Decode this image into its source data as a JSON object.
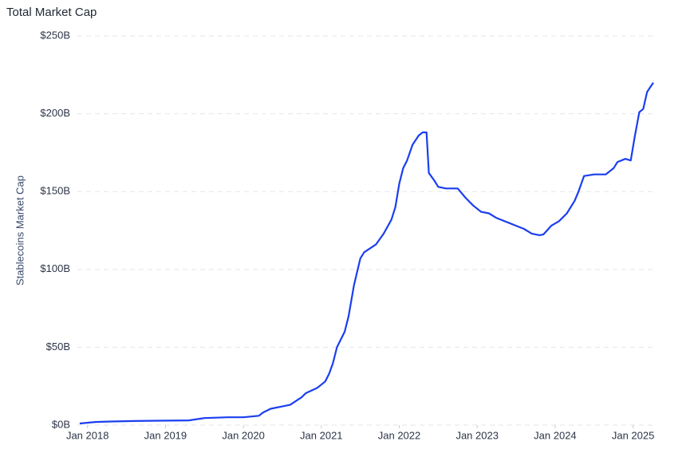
{
  "chart_data": {
    "type": "line",
    "title": "Total Market Cap",
    "y_label": "Stablecoins Market Cap",
    "x": [
      2017.9,
      2018.1,
      2018.3,
      2018.6,
      2018.9,
      2019.3,
      2019.5,
      2019.8,
      2020.0,
      2020.2,
      2020.25,
      2020.35,
      2020.5,
      2020.6,
      2020.75,
      2020.8,
      2020.95,
      2021.05,
      2021.1,
      2021.15,
      2021.2,
      2021.3,
      2021.35,
      2021.42,
      2021.5,
      2021.55,
      2021.7,
      2021.8,
      2021.9,
      2021.95,
      2022.0,
      2022.05,
      2022.1,
      2022.17,
      2022.25,
      2022.3,
      2022.35,
      2022.38,
      2022.45,
      2022.5,
      2022.6,
      2022.75,
      2022.85,
      2022.95,
      2023.05,
      2023.15,
      2023.25,
      2023.4,
      2023.5,
      2023.6,
      2023.7,
      2023.8,
      2023.85,
      2023.95,
      2024.05,
      2024.15,
      2024.25,
      2024.3,
      2024.37,
      2024.5,
      2024.65,
      2024.75,
      2024.8,
      2024.9,
      2024.97,
      2025.02,
      2025.08,
      2025.13,
      2025.18,
      2025.22,
      2025.26
    ],
    "series": [
      {
        "name": "Stablecoins Market Cap",
        "color": "#1a3ef0",
        "values": [
          1,
          2,
          2.3,
          2.6,
          2.8,
          3,
          4.5,
          5,
          5,
          6,
          8,
          10.5,
          12,
          13,
          18,
          20.5,
          24,
          28,
          33,
          40,
          50,
          60,
          70,
          90,
          107,
          111,
          116,
          123,
          132,
          140,
          155,
          165,
          170,
          180,
          186,
          188,
          188,
          162,
          157,
          153,
          152,
          152,
          146,
          141,
          137,
          136,
          133,
          130,
          128,
          126,
          123,
          122,
          122.5,
          128,
          131,
          136,
          144,
          150,
          160,
          161,
          161,
          165,
          169,
          171,
          170,
          185,
          201,
          203,
          214,
          217,
          220
        ]
      }
    ],
    "xlim": [
      2017.87,
      2025.27
    ],
    "xticks": [
      {
        "value": 2018,
        "label": "Jan 2018"
      },
      {
        "value": 2019,
        "label": "Jan 2019"
      },
      {
        "value": 2020,
        "label": "Jan 2020"
      },
      {
        "value": 2021,
        "label": "Jan 2021"
      },
      {
        "value": 2022,
        "label": "Jan 2022"
      },
      {
        "value": 2023,
        "label": "Jan 2023"
      },
      {
        "value": 2024,
        "label": "Jan 2024"
      },
      {
        "value": 2025,
        "label": "Jan 2025"
      }
    ],
    "ylim": [
      0,
      250
    ],
    "yticks": [
      {
        "value": 0,
        "label": "$0B"
      },
      {
        "value": 50,
        "label": "$50B"
      },
      {
        "value": 100,
        "label": "$100B"
      },
      {
        "value": 150,
        "label": "$150B"
      },
      {
        "value": 200,
        "label": "$200B"
      },
      {
        "value": 250,
        "label": "$250B"
      }
    ],
    "grid": true
  }
}
